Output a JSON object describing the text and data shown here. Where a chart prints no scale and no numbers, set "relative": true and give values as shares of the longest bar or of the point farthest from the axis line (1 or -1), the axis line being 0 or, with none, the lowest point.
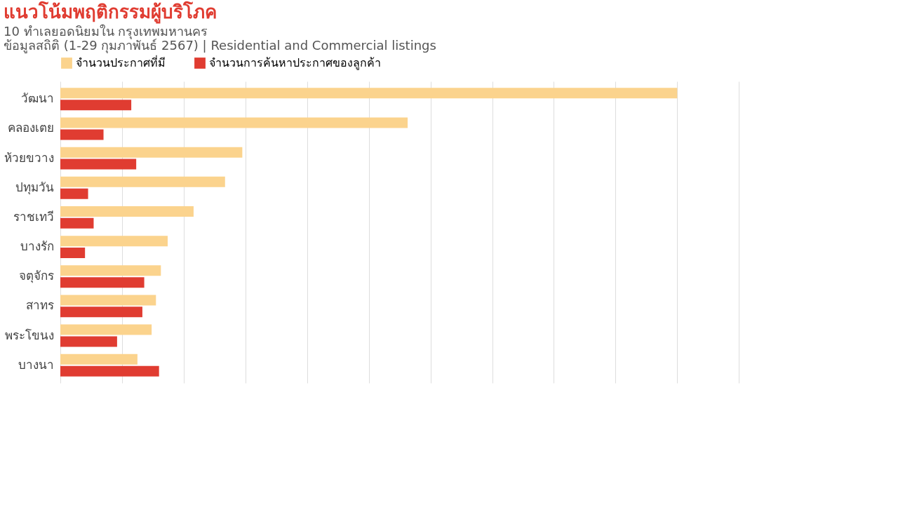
{
  "chart_data": {
    "type": "bar",
    "orientation": "horizontal",
    "relative": true,
    "title": "แนวโน้มพฤติกรรมผู้บริโภค",
    "subtitle": "10 ทำเลยอดนิยมใน กรุงเทพมหานคร",
    "annotations": [
      "ข้อมูลสถิติ (1-29 กุมภาพันธ์ 2567) | Residential and Commercial listings"
    ],
    "categories": [
      "วัฒนา",
      "คลองเตย",
      "ห้วยขวาง",
      "ปทุมวัน",
      "ราชเทวี",
      "บางรัก",
      "จตุจักร",
      "สาทร",
      "พระโขนง",
      "บางนา"
    ],
    "series": [
      {
        "name": "จำนวนประกาศที่มี",
        "color": "#fbd38d",
        "values": [
          1.0,
          0.563,
          0.295,
          0.267,
          0.216,
          0.174,
          0.163,
          0.155,
          0.148,
          0.125
        ]
      },
      {
        "name": "จำนวนการค้นหาประกาศของลูกค้า",
        "color": "#e03c31",
        "values": [
          0.115,
          0.07,
          0.123,
          0.045,
          0.054,
          0.04,
          0.136,
          0.133,
          0.092,
          0.16
        ]
      }
    ],
    "legend": "top",
    "grid": "x"
  }
}
